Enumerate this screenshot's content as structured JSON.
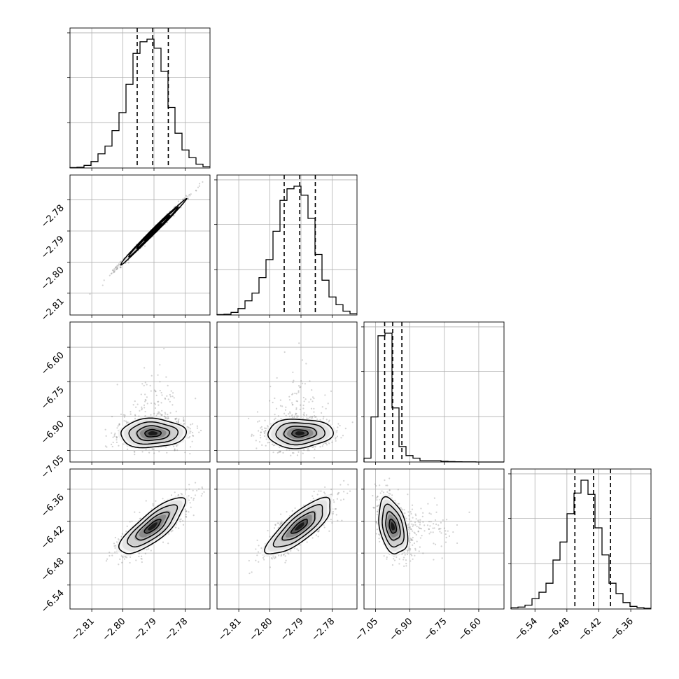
{
  "chart_data": {
    "type": "corner",
    "title": "",
    "grid": true,
    "colors": {
      "line": "#000000",
      "grid": "#b0b0b0",
      "points": "#7f7f7f"
    },
    "params": [
      {
        "range": [
          -2.817,
          -2.772
        ],
        "ticks": [
          -2.81,
          -2.8,
          -2.79,
          -2.78
        ],
        "tick_labels": [
          "−2.81",
          "−2.80",
          "−2.79",
          "−2.78"
        ],
        "quantiles": [
          -2.7954,
          -2.7904,
          -2.7854
        ],
        "hist_density": [
          0.003,
          0.006,
          0.02,
          0.05,
          0.11,
          0.17,
          0.29,
          0.43,
          0.65,
          0.89,
          0.98,
          1.0,
          0.93,
          0.75,
          0.47,
          0.27,
          0.14,
          0.08,
          0.03,
          0.01
        ]
      },
      {
        "range": [
          -2.817,
          -2.772
        ],
        "ticks": [
          -2.81,
          -2.8,
          -2.79,
          -2.78
        ],
        "tick_labels": [
          "−2.81",
          "−2.80",
          "−2.79",
          "−2.78"
        ],
        "quantiles": [
          -2.7954,
          -2.7904,
          -2.7854
        ],
        "hist_density": [
          0.003,
          0.006,
          0.02,
          0.05,
          0.11,
          0.17,
          0.29,
          0.43,
          0.65,
          0.89,
          0.98,
          1.0,
          0.93,
          0.75,
          0.47,
          0.27,
          0.14,
          0.08,
          0.03,
          0.01
        ]
      },
      {
        "range": [
          -7.1,
          -6.49
        ],
        "ticks": [
          -7.05,
          -6.9,
          -6.75,
          -6.6
        ],
        "tick_labels": [
          "−7.05",
          "−6.90",
          "−6.75",
          "−6.60"
        ],
        "quantiles": [
          -7.01,
          -6.975,
          -6.935
        ],
        "hist_density": [
          0.03,
          0.35,
          0.98,
          1.0,
          0.42,
          0.12,
          0.05,
          0.03,
          0.01,
          0.01,
          0.01,
          0.005,
          0.003,
          0.002,
          0.001,
          0.001,
          0.0,
          0.0,
          0.0,
          0.0
        ]
      },
      {
        "range": [
          -6.585,
          -6.322
        ],
        "ticks": [
          -6.54,
          -6.48,
          -6.42,
          -6.36
        ],
        "tick_labels": [
          "−6.54",
          "−6.48",
          "−6.42",
          "−6.36"
        ],
        "quantiles": [
          -6.465,
          -6.43,
          -6.398
        ],
        "hist_density": [
          0.01,
          0.015,
          0.03,
          0.08,
          0.13,
          0.2,
          0.38,
          0.52,
          0.74,
          0.9,
          1.0,
          0.89,
          0.63,
          0.42,
          0.2,
          0.12,
          0.05,
          0.02,
          0.01,
          0.005
        ]
      }
    ],
    "pairs": [
      {
        "row": 1,
        "col": 0,
        "center": [
          -2.7904,
          -2.7904
        ],
        "sigma": [
          0.005,
          0.005
        ],
        "rho": 0.995
      },
      {
        "row": 2,
        "col": 0,
        "center": [
          -2.7904,
          -6.975
        ],
        "sigma": [
          0.005,
          0.03
        ],
        "rho": 0.05
      },
      {
        "row": 2,
        "col": 1,
        "center": [
          -2.7904,
          -6.975
        ],
        "sigma": [
          0.005,
          0.03
        ],
        "rho": 0.05
      },
      {
        "row": 3,
        "col": 0,
        "center": [
          -2.7904,
          -6.43
        ],
        "sigma": [
          0.005,
          0.025
        ],
        "rho": 0.8
      },
      {
        "row": 3,
        "col": 1,
        "center": [
          -2.7904,
          -6.43
        ],
        "sigma": [
          0.005,
          0.025
        ],
        "rho": 0.8
      },
      {
        "row": 3,
        "col": 2,
        "center": [
          -6.975,
          -6.43
        ],
        "sigma": [
          0.03,
          0.025
        ],
        "rho": -0.35
      }
    ],
    "contour_levels_sigma": [
      0.5,
      1.0,
      1.5,
      2.0
    ]
  }
}
